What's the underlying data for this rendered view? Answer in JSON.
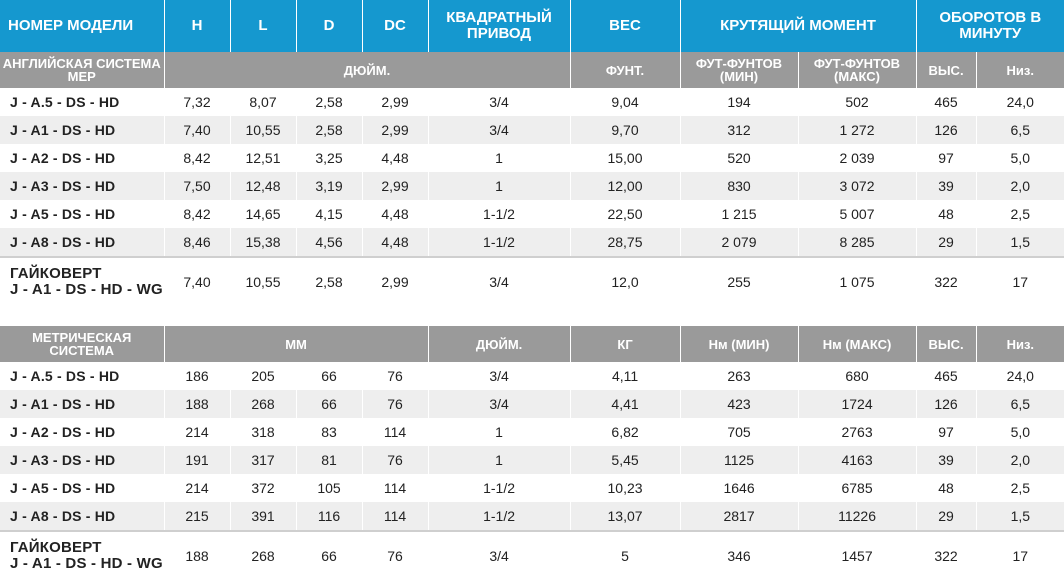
{
  "header": {
    "model": "НОМЕР МОДЕЛИ",
    "h": "H",
    "l": "L",
    "d": "D",
    "dc": "DC",
    "square_drive": "КВАДРАТНЫЙ ПРИВОД",
    "weight": "ВЕС",
    "torque": "КРУТЯЩИЙ МОМЕНТ",
    "rpm": "ОБОРОТОВ В МИНУТУ"
  },
  "imperial": {
    "units": {
      "system": "АНГЛИЙСКАЯ СИСТЕМА МЕР",
      "dims": "ДЮЙМ.",
      "weight": "ФУНТ.",
      "torque_min": "ФУТ-ФУНТОВ (МИН)",
      "torque_max": "ФУТ-ФУНТОВ (МАКС)",
      "rpm_high": "ВЫС.",
      "rpm_low": "Низ."
    },
    "rows": [
      [
        "J - A.5 - DS - HD",
        "7,32",
        "8,07",
        "2,58",
        "2,99",
        "3/4",
        "9,04",
        "194",
        "502",
        "465",
        "24,0"
      ],
      [
        "J - A1 - DS - HD",
        "7,40",
        "10,55",
        "2,58",
        "2,99",
        "3/4",
        "9,70",
        "312",
        "1 272",
        "126",
        "6,5"
      ],
      [
        "J - A2 - DS - HD",
        "8,42",
        "12,51",
        "3,25",
        "4,48",
        "1",
        "15,00",
        "520",
        "2 039",
        "97",
        "5,0"
      ],
      [
        "J - A3 - DS - HD",
        "7,50",
        "12,48",
        "3,19",
        "2,99",
        "1",
        "12,00",
        "830",
        "3 072",
        "39",
        "2,0"
      ],
      [
        "J - A5 - DS - HD",
        "8,42",
        "14,65",
        "4,15",
        "4,48",
        "1-1/2",
        "22,50",
        "1 215",
        "5 007",
        "48",
        "2,5"
      ],
      [
        "J - A8 - DS - HD",
        "8,46",
        "15,38",
        "4,56",
        "4,48",
        "1-1/2",
        "28,75",
        "2 079",
        "8 285",
        "29",
        "1,5"
      ]
    ],
    "wrench": {
      "label1": "ГАЙКОВЕРТ",
      "label2": "J - A1 - DS - HD - WG",
      "values": [
        "7,40",
        "10,55",
        "2,58",
        "2,99",
        "3/4",
        "12,0",
        "255",
        "1 075",
        "322",
        "17"
      ]
    }
  },
  "metric": {
    "units": {
      "system": "МЕТРИЧЕСКАЯ СИСТЕМА",
      "dims": "ММ",
      "drive": "ДЮЙМ.",
      "weight": "КГ",
      "torque_min": "Нм (МИН)",
      "torque_max": "Нм (МАКС)",
      "rpm_high": "ВЫС.",
      "rpm_low": "Низ."
    },
    "rows": [
      [
        "J - A.5 - DS - HD",
        "186",
        "205",
        "66",
        "76",
        "3/4",
        "4,11",
        "263",
        "680",
        "465",
        "24,0"
      ],
      [
        "J - A1 - DS - HD",
        "188",
        "268",
        "66",
        "76",
        "3/4",
        "4,41",
        "423",
        "1724",
        "126",
        "6,5"
      ],
      [
        "J - A2 - DS - HD",
        "214",
        "318",
        "83",
        "114",
        "1",
        "6,82",
        "705",
        "2763",
        "97",
        "5,0"
      ],
      [
        "J - A3 - DS - HD",
        "191",
        "317",
        "81",
        "76",
        "1",
        "5,45",
        "1125",
        "4163",
        "39",
        "2,0"
      ],
      [
        "J - A5 - DS - HD",
        "214",
        "372",
        "105",
        "114",
        "1-1/2",
        "10,23",
        "1646",
        "6785",
        "48",
        "2,5"
      ],
      [
        "J - A8 - DS - HD",
        "215",
        "391",
        "116",
        "114",
        "1-1/2",
        "13,07",
        "2817",
        "11226",
        "29",
        "1,5"
      ]
    ],
    "wrench": {
      "label1": "ГАЙКОВЕРТ",
      "label2": "J - A1 - DS - HD - WG",
      "values": [
        "188",
        "268",
        "66",
        "76",
        "3/4",
        "5",
        "346",
        "1457",
        "322",
        "17"
      ]
    }
  }
}
